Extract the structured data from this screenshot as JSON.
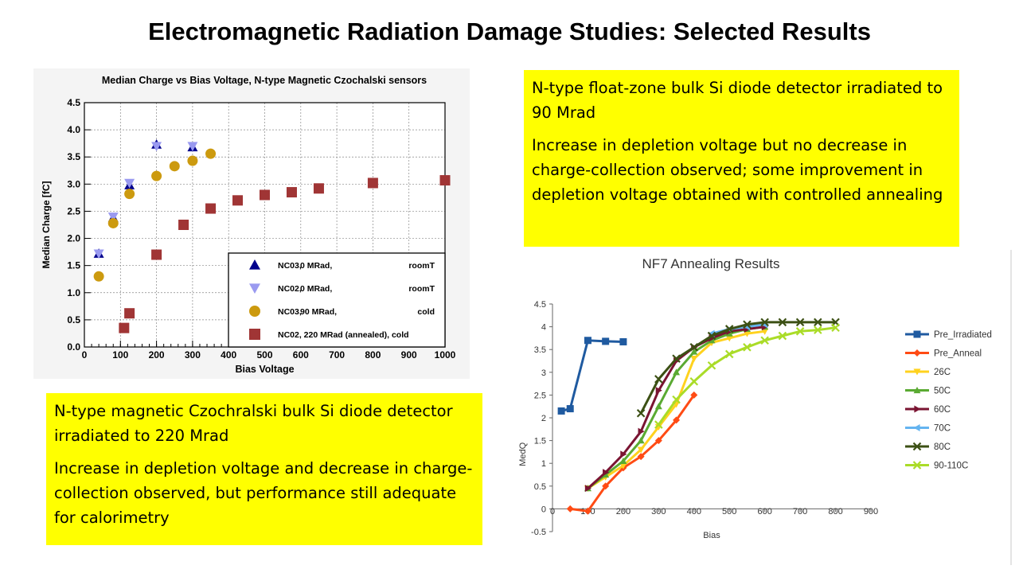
{
  "slide": {
    "title": "Electromagnetic Radiation Damage Studies: Selected Results",
    "note_right": {
      "line1": "N-type float-zone bulk Si diode detector irradiated to 90 Mrad",
      "line2": "Increase in depletion voltage but no decrease in charge-collection observed; some improvement in depletion voltage obtained with controlled annealing"
    },
    "note_left": {
      "line1": "N-type magnetic Czochralski bulk Si diode detector irradiated to 220 Mrad",
      "line2": "Increase in depletion voltage and decrease in charge-collection observed, but performance still adequate for calorimetry"
    },
    "highlight_color": "#ffff00"
  },
  "chart_data": [
    {
      "type": "scatter",
      "title": "Median Charge vs Bias Voltage, N-type Magnetic Czochalski sensors",
      "xlabel": "Bias Voltage",
      "ylabel": "Median Charge [fC]",
      "xlim": [
        0,
        1000
      ],
      "ylim": [
        0,
        4.5
      ],
      "xticks": [
        "0",
        "100",
        "200",
        "300",
        "400",
        "500",
        "600",
        "700",
        "800",
        "900",
        "1000"
      ],
      "yticks": [
        "0.0",
        "0.5",
        "1.0",
        "1.5",
        "2.0",
        "2.5",
        "3.0",
        "3.5",
        "4.0",
        "4.5"
      ],
      "grid": true,
      "legend_position": "bottom-right",
      "series": [
        {
          "name": "NC03,    0 MRad,             roomT",
          "legend": [
            "NC03,",
            "0 MRad,",
            "roomT"
          ],
          "marker": "triangle-up",
          "color": "#00008b",
          "points": [
            [
              40,
              1.72
            ],
            [
              80,
              2.38
            ],
            [
              125,
              2.98
            ],
            [
              200,
              3.73
            ],
            [
              300,
              3.68
            ]
          ]
        },
        {
          "name": "NC02,    0 MRad,             roomT",
          "legend": [
            "NC02,",
            "0 MRad,",
            "roomT"
          ],
          "marker": "triangle-down",
          "color": "#9a9af0",
          "points": [
            [
              40,
              1.72
            ],
            [
              80,
              2.4
            ],
            [
              125,
              3.02
            ],
            [
              200,
              3.7
            ],
            [
              300,
              3.7
            ]
          ]
        },
        {
          "name": "NC03,   90 MRad,             cold",
          "legend": [
            "NC03,",
            "90 MRad,",
            "cold"
          ],
          "marker": "circle",
          "color": "#cc9a0f",
          "points": [
            [
              40,
              1.3
            ],
            [
              80,
              2.28
            ],
            [
              125,
              2.82
            ],
            [
              200,
              3.15
            ],
            [
              250,
              3.33
            ],
            [
              300,
              3.43
            ],
            [
              350,
              3.56
            ]
          ]
        },
        {
          "name": "NC02, 220 MRad (annealed), cold",
          "legend": [
            "NC02, 220 MRad (annealed), cold"
          ],
          "marker": "square",
          "color": "#a03535",
          "points": [
            [
              110,
              0.35
            ],
            [
              125,
              0.62
            ],
            [
              200,
              1.7
            ],
            [
              275,
              2.25
            ],
            [
              350,
              2.55
            ],
            [
              425,
              2.7
            ],
            [
              500,
              2.8
            ],
            [
              575,
              2.85
            ],
            [
              650,
              2.92
            ],
            [
              800,
              3.02
            ],
            [
              1000,
              3.07
            ]
          ]
        }
      ]
    },
    {
      "type": "line",
      "title": "NF7 Annealing Results",
      "xlabel": "Bias",
      "ylabel": "MedQ",
      "xlim": [
        0,
        900
      ],
      "ylim": [
        -0.5,
        4.5
      ],
      "xticks": [
        "0",
        "100",
        "200",
        "300",
        "400",
        "500",
        "600",
        "700",
        "800",
        "900"
      ],
      "yticks": [
        "-0.5",
        "0",
        "0.5",
        "1",
        "1.5",
        "2",
        "2.5",
        "3",
        "3.5",
        "4",
        "4.5"
      ],
      "grid": false,
      "legend_position": "right",
      "series": [
        {
          "name": "Pre_Irradiated",
          "color": "#1f5aa0",
          "marker": "square",
          "points": [
            [
              25,
              2.15
            ],
            [
              50,
              2.2
            ],
            [
              100,
              3.7
            ],
            [
              150,
              3.68
            ],
            [
              200,
              3.67
            ]
          ]
        },
        {
          "name": "Pre_Anneal",
          "color": "#ff4b14",
          "marker": "diamond",
          "points": [
            [
              50,
              0.0
            ],
            [
              100,
              -0.05
            ],
            [
              150,
              0.5
            ],
            [
              200,
              0.9
            ],
            [
              250,
              1.15
            ],
            [
              300,
              1.5
            ],
            [
              350,
              1.95
            ],
            [
              400,
              2.5
            ]
          ]
        },
        {
          "name": "26C",
          "color": "#ffd21e",
          "marker": "triangle-down",
          "points": [
            [
              100,
              0.45
            ],
            [
              150,
              0.7
            ],
            [
              200,
              0.95
            ],
            [
              250,
              1.3
            ],
            [
              300,
              1.8
            ],
            [
              350,
              2.3
            ],
            [
              400,
              3.3
            ],
            [
              450,
              3.65
            ],
            [
              500,
              3.75
            ],
            [
              550,
              3.85
            ],
            [
              600,
              3.9
            ]
          ]
        },
        {
          "name": "50C",
          "color": "#5aaa32",
          "marker": "triangle-up",
          "points": [
            [
              100,
              0.45
            ],
            [
              150,
              0.75
            ],
            [
              200,
              1.05
            ],
            [
              250,
              1.5
            ],
            [
              300,
              2.25
            ],
            [
              350,
              3.0
            ],
            [
              400,
              3.45
            ],
            [
              450,
              3.7
            ],
            [
              500,
              3.85
            ],
            [
              550,
              3.95
            ],
            [
              600,
              4.0
            ]
          ]
        },
        {
          "name": "60C",
          "color": "#7a1432",
          "marker": "triangle-right",
          "points": [
            [
              100,
              0.45
            ],
            [
              150,
              0.8
            ],
            [
              200,
              1.2
            ],
            [
              250,
              1.7
            ],
            [
              300,
              2.6
            ],
            [
              350,
              3.25
            ],
            [
              400,
              3.55
            ],
            [
              450,
              3.75
            ],
            [
              500,
              3.9
            ],
            [
              550,
              3.95
            ],
            [
              600,
              4.0
            ]
          ]
        },
        {
          "name": "70C",
          "color": "#64b4f0",
          "marker": "triangle-left",
          "points": [
            [
              450,
              3.85
            ],
            [
              500,
              3.95
            ],
            [
              550,
              4.0
            ],
            [
              600,
              4.05
            ]
          ]
        },
        {
          "name": "80C",
          "color": "#3c5014",
          "marker": "x",
          "points": [
            [
              250,
              2.1
            ],
            [
              300,
              2.85
            ],
            [
              350,
              3.3
            ],
            [
              400,
              3.55
            ],
            [
              450,
              3.8
            ],
            [
              500,
              3.95
            ],
            [
              550,
              4.05
            ],
            [
              600,
              4.1
            ],
            [
              650,
              4.1
            ],
            [
              700,
              4.1
            ],
            [
              750,
              4.1
            ],
            [
              800,
              4.1
            ]
          ]
        },
        {
          "name": "90-110C",
          "color": "#aadc28",
          "marker": "x",
          "points": [
            [
              300,
              1.85
            ],
            [
              350,
              2.4
            ],
            [
              400,
              2.8
            ],
            [
              450,
              3.15
            ],
            [
              500,
              3.4
            ],
            [
              550,
              3.55
            ],
            [
              600,
              3.7
            ],
            [
              650,
              3.8
            ],
            [
              700,
              3.9
            ],
            [
              750,
              3.93
            ],
            [
              800,
              3.98
            ]
          ]
        }
      ]
    }
  ]
}
